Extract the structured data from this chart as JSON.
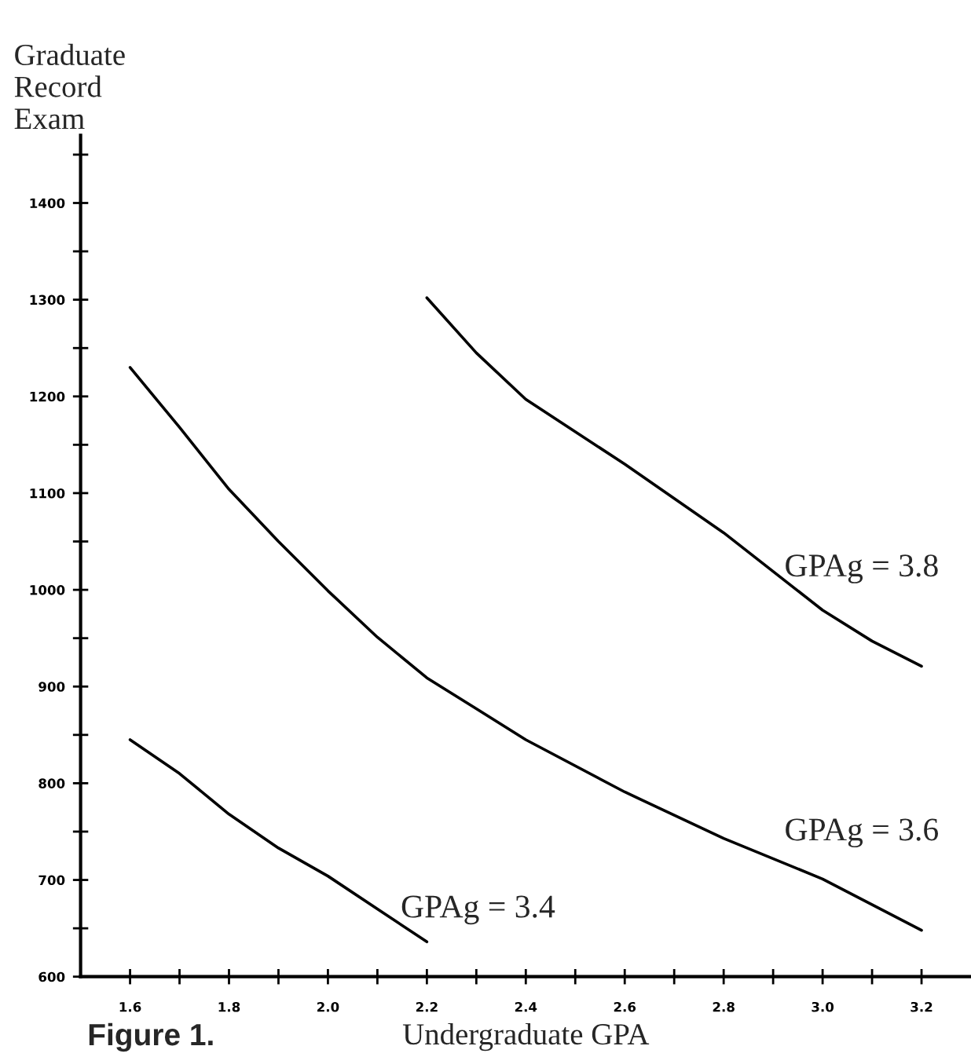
{
  "chart_data": {
    "type": "line",
    "xlabel": "Undergraduate GPA",
    "ylabel": "Graduate\nRecord\nExam",
    "xlim": [
      1.5,
      3.3
    ],
    "ylim": [
      600,
      1470
    ],
    "xticks": [
      {
        "value": 1.6,
        "label": "1.6"
      },
      {
        "value": 1.7,
        "label": null
      },
      {
        "value": 1.8,
        "label": "1.8"
      },
      {
        "value": 1.9,
        "label": null
      },
      {
        "value": 2.0,
        "label": "2.0"
      },
      {
        "value": 2.1,
        "label": null
      },
      {
        "value": 2.2,
        "label": "2.2"
      },
      {
        "value": 2.3,
        "label": null
      },
      {
        "value": 2.4,
        "label": "2.4"
      },
      {
        "value": 2.5,
        "label": null
      },
      {
        "value": 2.6,
        "label": "2.6"
      },
      {
        "value": 2.7,
        "label": null
      },
      {
        "value": 2.8,
        "label": "2.8"
      },
      {
        "value": 2.9,
        "label": null
      },
      {
        "value": 3.0,
        "label": "3.0"
      },
      {
        "value": 3.1,
        "label": null
      },
      {
        "value": 3.2,
        "label": "3.2"
      }
    ],
    "yticks": [
      600,
      {
        "value": 650,
        "label": null
      },
      700,
      {
        "value": 750,
        "label": null
      },
      800,
      {
        "value": 850,
        "label": null
      },
      900,
      {
        "value": 950,
        "label": null
      },
      1000,
      {
        "value": 1050,
        "label": null
      },
      1100,
      {
        "value": 1150,
        "label": null
      },
      1200,
      {
        "value": 1250,
        "label": null
      },
      1300,
      {
        "value": 1350,
        "label": null
      },
      1400,
      {
        "value": 1450,
        "label": null
      }
    ],
    "grid": false,
    "legend": false,
    "marker": "none",
    "line_style": "solid",
    "series": [
      {
        "name": "GPAg = 3.4",
        "color": "#000000",
        "x": [
          1.6,
          1.7,
          1.8,
          1.9,
          2.0,
          2.1,
          2.2
        ],
        "values": [
          845,
          810,
          768,
          733,
          704,
          670,
          636
        ]
      },
      {
        "name": "GPAg = 3.6",
        "color": "#000000",
        "x": [
          1.6,
          1.7,
          1.8,
          1.9,
          2.0,
          2.1,
          2.2,
          2.3,
          2.4,
          2.6,
          2.8,
          3.0,
          3.2
        ],
        "values": [
          1230,
          1168,
          1104,
          1050,
          999,
          951,
          909,
          877,
          845,
          791,
          743,
          701,
          648
        ]
      },
      {
        "name": "GPAg = 3.8",
        "color": "#000000",
        "x": [
          2.2,
          2.3,
          2.4,
          2.6,
          2.8,
          3.0,
          3.1,
          3.2
        ],
        "values": [
          1302,
          1245,
          1197,
          1130,
          1059,
          979,
          947,
          921
        ]
      }
    ],
    "annotations": [
      "Figure 1."
    ]
  }
}
